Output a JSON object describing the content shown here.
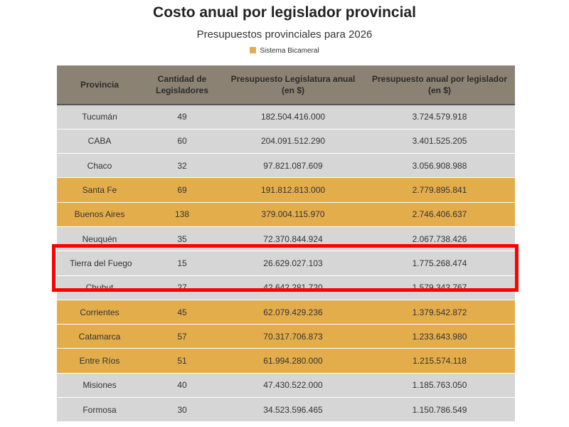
{
  "chart_data": {
    "type": "table",
    "title": "Costo anual por legislador provincial",
    "subtitle": "Presupuestos provinciales para 2026",
    "legend": [
      {
        "label": "Sistema Bicameral",
        "color": "#e4ad4c"
      }
    ],
    "columns": [
      "Provincia",
      "Cantidad de Legisladores",
      "Presupuesto Legislatura anual (en $)",
      "Presupuesto anual por legislador (en $)"
    ],
    "rows": [
      {
        "provincia": "Tucumán",
        "legisladores": "49",
        "presupuesto": "182.504.416.000",
        "por_legislador": "3.724.579.918",
        "bicameral": false
      },
      {
        "provincia": "CABA",
        "legisladores": "60",
        "presupuesto": "204.091.512.290",
        "por_legislador": "3.401.525.205",
        "bicameral": false
      },
      {
        "provincia": "Chaco",
        "legisladores": "32",
        "presupuesto": "97.821.087.609",
        "por_legislador": "3.056.908.988",
        "bicameral": false
      },
      {
        "provincia": "Santa Fe",
        "legisladores": "69",
        "presupuesto": "191.812.813.000",
        "por_legislador": "2.779.895.841",
        "bicameral": true
      },
      {
        "provincia": "Buenos Aires",
        "legisladores": "138",
        "presupuesto": "379.004.115.970",
        "por_legislador": "2.746.406.637",
        "bicameral": true
      },
      {
        "provincia": "Neuquén",
        "legisladores": "35",
        "presupuesto": "72.370.844.924",
        "por_legislador": "2.067.738.426",
        "bicameral": false
      },
      {
        "provincia": "Tierra del Fuego",
        "legisladores": "15",
        "presupuesto": "26.629.027.103",
        "por_legislador": "1.775.268.474",
        "bicameral": false,
        "highlighted": true
      },
      {
        "provincia": "Chubut",
        "legisladores": "27",
        "presupuesto": "42.642.281.720",
        "por_legislador": "1.579.343.767",
        "bicameral": false
      },
      {
        "provincia": "Corrientes",
        "legisladores": "45",
        "presupuesto": "62.079.429.236",
        "por_legislador": "1.379.542.872",
        "bicameral": true
      },
      {
        "provincia": "Catamarca",
        "legisladores": "57",
        "presupuesto": "70.317.706.873",
        "por_legislador": "1.233.643.980",
        "bicameral": true
      },
      {
        "provincia": "Entre Ríos",
        "legisladores": "51",
        "presupuesto": "61.994.280.000",
        "por_legislador": "1.215.574.118",
        "bicameral": true
      },
      {
        "provincia": "Misiones",
        "legisladores": "40",
        "presupuesto": "47.430.522.000",
        "por_legislador": "1.185.763.050",
        "bicameral": false
      },
      {
        "provincia": "Formosa",
        "legisladores": "30",
        "presupuesto": "34.523.596.465",
        "por_legislador": "1.150.786.549",
        "bicameral": false
      }
    ]
  },
  "colors": {
    "bicameral": "#e4ad4c",
    "unicameral": "#d6d6d6",
    "header": "#8c8273",
    "highlight": "#ff0000"
  }
}
